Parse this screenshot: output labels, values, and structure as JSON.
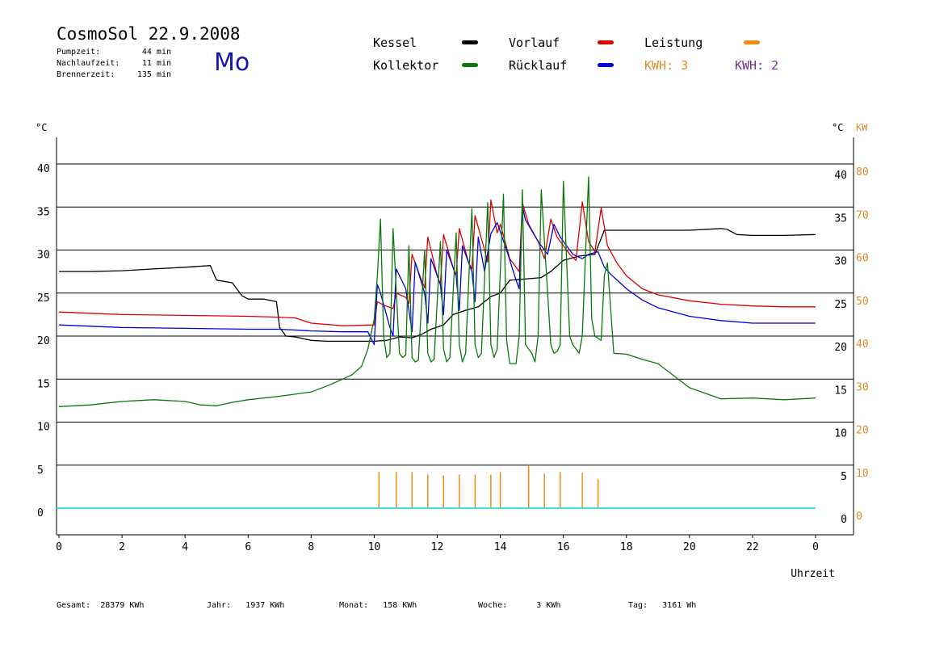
{
  "header": {
    "title": "CosmoSol 22.9.2008",
    "weekday": "Mo",
    "info": [
      {
        "label": "Pumpzeit:",
        "value": "44 min"
      },
      {
        "label": "Nachlaufzeit:",
        "value": "11 min"
      },
      {
        "label": "Brennerzeit:",
        "value": "135 min"
      }
    ]
  },
  "legend": {
    "items": [
      {
        "name": "Kessel",
        "color": "#000000"
      },
      {
        "name": "Vorlauf",
        "color": "#dc0000"
      },
      {
        "name": "Leistung",
        "color": "#f08c14"
      },
      {
        "name": "Kollektor",
        "color": "#0a780a"
      },
      {
        "name": "Rücklauf",
        "color": "#0000dc"
      }
    ],
    "kwh": [
      {
        "label": "KWH:",
        "value": "3",
        "color": "#e08c28"
      },
      {
        "label": "KWH:",
        "value": "2",
        "color": "#7a2d8c"
      }
    ]
  },
  "footer": [
    {
      "label": "Gesamt:",
      "value": "28379 KWh"
    },
    {
      "label": "Jahr:",
      "value": "1937 KWh"
    },
    {
      "label": "Monat:",
      "value": "158 KWh"
    },
    {
      "label": "Woche:",
      "value": "3 KWh"
    },
    {
      "label": "Tag:",
      "value": "3161 Wh"
    }
  ],
  "chart_data": {
    "type": "line",
    "xlabel": "Uhrzeit",
    "x_ticks": [
      "0",
      "2",
      "4",
      "6",
      "8",
      "10",
      "12",
      "14",
      "16",
      "18",
      "20",
      "22",
      "0"
    ],
    "xlim": [
      0,
      24
    ],
    "ylabel_left": "°C",
    "ylabel_right": [
      "°C",
      "KW"
    ],
    "ylim": [
      0,
      40
    ],
    "y_ticks": [
      0,
      5,
      10,
      15,
      20,
      25,
      30,
      35,
      40
    ],
    "y2_ticks": [
      "0",
      "10",
      "20",
      "30",
      "40",
      "50",
      "60",
      "70",
      "80"
    ],
    "grid": true,
    "series": [
      {
        "name": "Kessel",
        "color": "#000000",
        "x": [
          0,
          1,
          2,
          3,
          4,
          4.8,
          5,
          5.5,
          5.8,
          6,
          6.5,
          6.9,
          7,
          7.2,
          7.5,
          8,
          8.5,
          9,
          9.5,
          10,
          10.4,
          10.8,
          11.2,
          11.5,
          11.8,
          12.2,
          12.5,
          12.9,
          13.3,
          13.7,
          14.0,
          14.3,
          14.7,
          15.0,
          15.3,
          15.6,
          16.0,
          16.5,
          17.0,
          17.3,
          17.5,
          18,
          19,
          20,
          21,
          21.2,
          21.5,
          22,
          23,
          24
        ],
        "y": [
          27.5,
          27.5,
          27.6,
          27.8,
          28.0,
          28.2,
          26.5,
          26.2,
          24.7,
          24.3,
          24.3,
          24.0,
          21.0,
          20.0,
          19.9,
          19.5,
          19.4,
          19.4,
          19.4,
          19.4,
          19.5,
          19.9,
          19.8,
          20.2,
          20.8,
          21.3,
          22.5,
          23.0,
          23.4,
          24.6,
          25.0,
          26.5,
          26.6,
          26.7,
          26.8,
          27.5,
          28.8,
          29.3,
          29.5,
          32.3,
          32.3,
          32.3,
          32.3,
          32.3,
          32.5,
          32.4,
          31.8,
          31.7,
          31.7,
          31.8
        ]
      },
      {
        "name": "Vorlauf",
        "color": "#dc0000",
        "x": [
          0,
          2,
          4,
          6,
          7,
          7.5,
          8,
          9,
          10,
          10.1,
          10.3,
          10.6,
          10.7,
          11.0,
          11.1,
          11.2,
          11.5,
          11.6,
          11.7,
          12.0,
          12.1,
          12.2,
          12.5,
          12.6,
          12.7,
          13.0,
          13.1,
          13.2,
          13.5,
          13.6,
          13.7,
          13.9,
          14.0,
          14.3,
          14.6,
          14.7,
          14.9,
          15.2,
          15.4,
          15.6,
          15.8,
          16.2,
          16.4,
          16.6,
          16.8,
          17.0,
          17.2,
          17.4,
          17.7,
          18,
          18.5,
          19,
          20,
          21,
          22,
          23,
          24
        ],
        "y": [
          22.8,
          22.5,
          22.4,
          22.3,
          22.2,
          22.1,
          21.5,
          21.2,
          21.3,
          24.0,
          23.6,
          23.2,
          25.0,
          24.5,
          23.8,
          29.5,
          26.5,
          25.6,
          31.5,
          27.0,
          26.0,
          31.8,
          28.0,
          27.0,
          32.5,
          28.5,
          27.8,
          34.0,
          30.0,
          28.6,
          35.8,
          32.0,
          33.0,
          29.0,
          27.5,
          35.5,
          33.0,
          31.0,
          29.0,
          33.6,
          31.5,
          29.5,
          28.8,
          35.6,
          31.0,
          29.8,
          34.9,
          30.5,
          28.5,
          27.0,
          25.5,
          24.8,
          24.1,
          23.7,
          23.5,
          23.4,
          23.4
        ]
      },
      {
        "name": "Rücklauf",
        "color": "#0000dc",
        "x": [
          0,
          2,
          4,
          6,
          7,
          8,
          9,
          9.8,
          10.0,
          10.1,
          10.2,
          10.5,
          10.6,
          10.7,
          11.0,
          11.2,
          11.3,
          11.6,
          11.7,
          11.8,
          12.1,
          12.2,
          12.3,
          12.6,
          12.7,
          12.8,
          13.1,
          13.2,
          13.3,
          13.5,
          13.7,
          13.9,
          14.2,
          14.5,
          14.6,
          14.7,
          14.8,
          15.2,
          15.5,
          15.7,
          15.9,
          16.3,
          16.6,
          16.8,
          17.1,
          17.3,
          17.5,
          18,
          18.5,
          19,
          20,
          21,
          22,
          23,
          24
        ],
        "y": [
          21.3,
          21.0,
          20.9,
          20.8,
          20.8,
          20.6,
          20.5,
          20.5,
          19.0,
          26.0,
          25.0,
          21.0,
          20.0,
          27.8,
          25.5,
          20.5,
          28.6,
          25.0,
          21.5,
          29.0,
          26.0,
          22.5,
          30.0,
          27.0,
          23.0,
          30.5,
          27.5,
          24.0,
          31.5,
          27.5,
          31.9,
          33.2,
          30.0,
          26.5,
          25.5,
          35.1,
          33.5,
          31.0,
          29.5,
          33.0,
          31.5,
          29.5,
          29.0,
          29.5,
          29.8,
          28.0,
          27.2,
          25.5,
          24.2,
          23.3,
          22.3,
          21.8,
          21.5,
          21.5,
          21.5
        ]
      },
      {
        "name": "Kollektor",
        "color": "#0a780a",
        "x": [
          0,
          1,
          2,
          3,
          4,
          4.5,
          5,
          5.5,
          6,
          7,
          8,
          8.5,
          9,
          9.3,
          9.6,
          9.8,
          10.0,
          10.1,
          10.2,
          10.3,
          10.4,
          10.5,
          10.6,
          10.8,
          10.9,
          11.0,
          11.1,
          11.2,
          11.3,
          11.4,
          11.6,
          11.7,
          11.8,
          11.9,
          12.1,
          12.2,
          12.3,
          12.4,
          12.6,
          12.7,
          12.8,
          12.9,
          13.1,
          13.2,
          13.3,
          13.4,
          13.6,
          13.7,
          13.8,
          13.9,
          14.1,
          14.2,
          14.3,
          14.5,
          14.6,
          14.7,
          14.8,
          15.0,
          15.1,
          15.2,
          15.3,
          15.6,
          15.7,
          15.8,
          15.9,
          16.0,
          16.2,
          16.3,
          16.5,
          16.6,
          16.8,
          16.9,
          17.0,
          17.2,
          17.3,
          17.4,
          17.6,
          18,
          18.5,
          19,
          20,
          21,
          22,
          23,
          24
        ],
        "y": [
          11.8,
          12.0,
          12.4,
          12.6,
          12.4,
          12.0,
          11.9,
          12.3,
          12.6,
          13.0,
          13.5,
          14.2,
          15.0,
          15.5,
          16.5,
          18.5,
          22.0,
          27.0,
          33.6,
          20.0,
          17.5,
          18.0,
          32.5,
          18.0,
          17.5,
          17.8,
          30.5,
          17.5,
          17.0,
          17.2,
          30.0,
          18.0,
          17.0,
          17.3,
          31.0,
          18.5,
          17.0,
          17.5,
          32.0,
          19.0,
          17.0,
          18.0,
          34.8,
          19.0,
          17.5,
          18.0,
          35.5,
          19.0,
          17.5,
          18.5,
          36.5,
          19.5,
          16.8,
          16.8,
          20.0,
          37.0,
          19.0,
          18.0,
          17.0,
          20.0,
          37.0,
          19.0,
          18.0,
          18.2,
          19.0,
          38.0,
          20.0,
          19.0,
          18.0,
          20.0,
          38.5,
          22.0,
          20.0,
          19.5,
          27.0,
          28.5,
          18.0,
          17.9,
          17.3,
          16.8,
          14.0,
          12.7,
          12.8,
          12.6,
          12.8
        ]
      },
      {
        "name": "Leistung",
        "color": "#f08c14",
        "x": [
          10.15,
          10.7,
          11.2,
          11.7,
          12.2,
          12.7,
          13.2,
          13.7,
          14.0,
          14.9,
          15.4,
          15.9,
          16.6,
          17.1
        ],
        "y": [
          4.2,
          4.2,
          4.2,
          3.9,
          3.8,
          3.9,
          3.9,
          3.9,
          4.2,
          5.0,
          4.0,
          4.2,
          4.1,
          3.4
        ]
      }
    ]
  }
}
